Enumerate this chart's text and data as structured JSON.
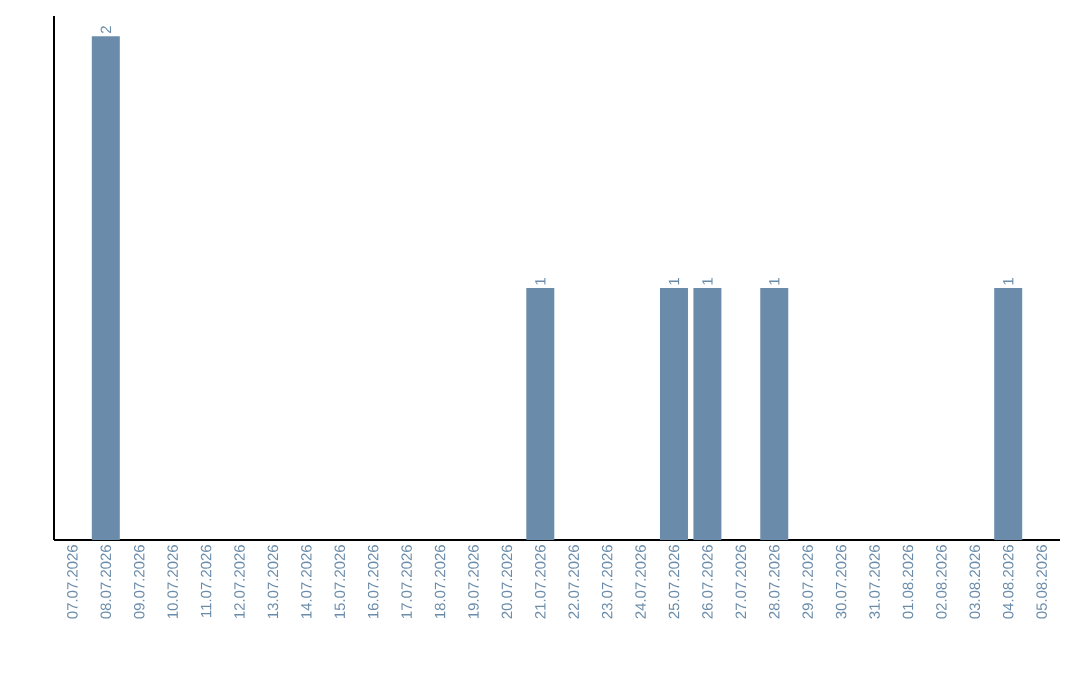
{
  "chart_data": {
    "type": "bar",
    "categories": [
      "07.07.2026",
      "08.07.2026",
      "09.07.2026",
      "10.07.2026",
      "11.07.2026",
      "12.07.2026",
      "13.07.2026",
      "14.07.2026",
      "15.07.2026",
      "16.07.2026",
      "17.07.2026",
      "18.07.2026",
      "19.07.2026",
      "20.07.2026",
      "21.07.2026",
      "22.07.2026",
      "23.07.2026",
      "24.07.2026",
      "25.07.2026",
      "26.07.2026",
      "27.07.2026",
      "28.07.2026",
      "29.07.2026",
      "30.07.2026",
      "31.07.2026",
      "01.08.2026",
      "02.08.2026",
      "03.08.2026",
      "04.08.2026",
      "05.08.2026"
    ],
    "values": [
      0,
      2,
      0,
      0,
      0,
      0,
      0,
      0,
      0,
      0,
      0,
      0,
      0,
      0,
      1,
      0,
      0,
      0,
      1,
      1,
      0,
      1,
      0,
      0,
      0,
      0,
      0,
      0,
      1,
      0
    ],
    "value_labels": [
      null,
      "2",
      null,
      null,
      null,
      null,
      null,
      null,
      null,
      null,
      null,
      null,
      null,
      null,
      "1",
      null,
      null,
      null,
      "1",
      "1",
      null,
      "1",
      null,
      null,
      null,
      null,
      null,
      null,
      "1",
      null
    ],
    "color": "#6a8caa",
    "ylim": [
      0,
      2.08
    ],
    "tick_labels": "x"
  }
}
